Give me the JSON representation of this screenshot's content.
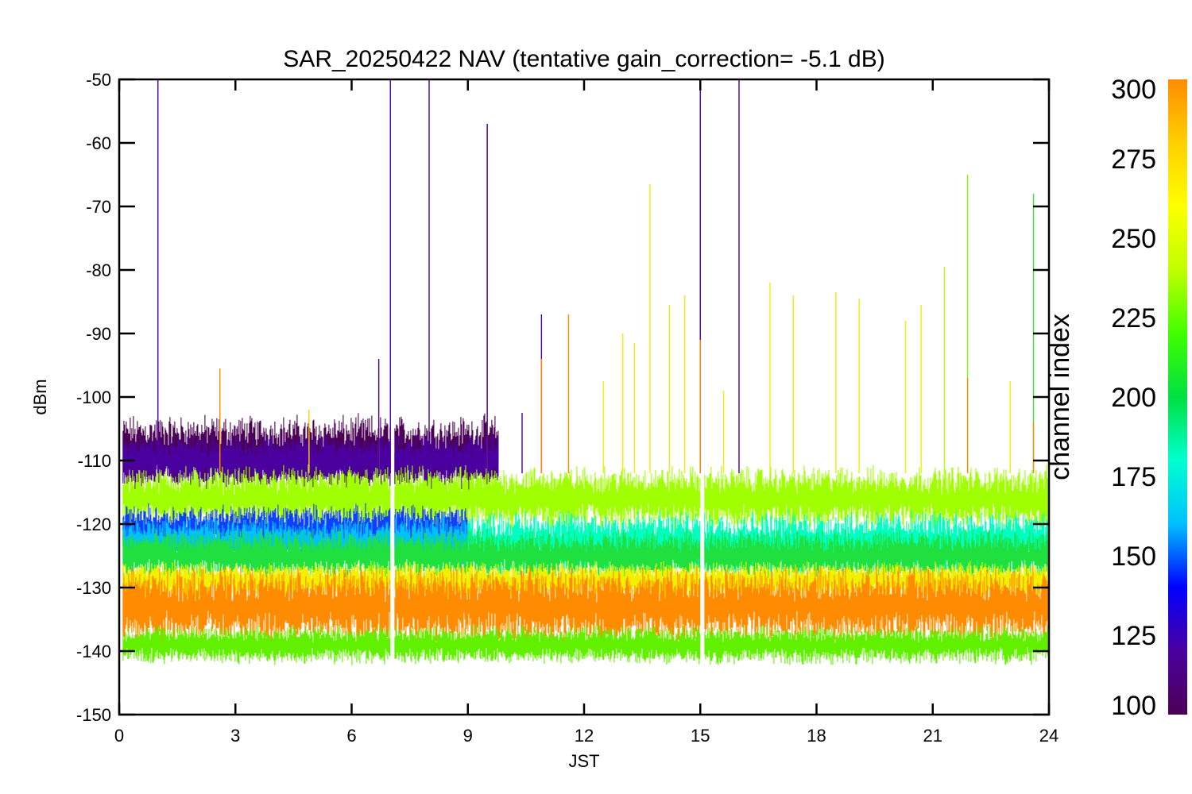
{
  "chart_data": {
    "type": "line",
    "title": "SAR_20250422 NAV (tentative gain_correction= -5.1 dB)",
    "xlabel": "JST",
    "ylabel": "dBm",
    "xlim": [
      0,
      24
    ],
    "ylim": [
      -150,
      -50
    ],
    "xticks": [
      0,
      3,
      6,
      9,
      12,
      15,
      18,
      21,
      24
    ],
    "yticks": [
      -50,
      -60,
      -70,
      -80,
      -90,
      -100,
      -110,
      -120,
      -130,
      -140,
      -150
    ],
    "grid": false,
    "colorbar": {
      "label": "channel index",
      "range": [
        100,
        300
      ],
      "ticks": [
        300,
        275,
        250,
        225,
        200,
        175,
        150,
        125,
        100
      ],
      "colors": [
        "#4b0055",
        "#4b00a0",
        "#0000ff",
        "#00c0ff",
        "#00ffd0",
        "#00e040",
        "#40ff00",
        "#c0ff00",
        "#ffff00",
        "#ffd000",
        "#ff8c00"
      ]
    },
    "bands": [
      {
        "channel_index": 100,
        "color": "#4b0055",
        "x_range": [
          0.1,
          9.8
        ],
        "y_center": -109,
        "y_spread": 3
      },
      {
        "channel_index": 110,
        "color": "#4b00a0",
        "x_range": [
          0.1,
          9.8
        ],
        "y_center": -110,
        "y_spread": 2
      },
      {
        "channel_index": 255,
        "color": "#a0ff00",
        "x_range": [
          0.1,
          24
        ],
        "y_center": -116,
        "y_spread": 2.5
      },
      {
        "channel_index": 140,
        "color": "#1040ff",
        "x_range": [
          0.1,
          9.0
        ],
        "y_center": -121,
        "y_spread": 2
      },
      {
        "channel_index": 170,
        "color": "#00c0ff",
        "x_range": [
          0.1,
          9.0
        ],
        "y_center": -123,
        "y_spread": 2
      },
      {
        "channel_index": 195,
        "color": "#00ffc0",
        "x_range": [
          9.0,
          24
        ],
        "y_center": -123,
        "y_spread": 2.5
      },
      {
        "channel_index": 225,
        "color": "#20e040",
        "x_range": [
          0.1,
          24
        ],
        "y_center": -125,
        "y_spread": 2
      },
      {
        "channel_index": 270,
        "color": "#f0f000",
        "x_range": [
          0.1,
          24
        ],
        "y_center": -129,
        "y_spread": 1.5
      },
      {
        "channel_index": 295,
        "color": "#ff8c00",
        "x_range": [
          0.1,
          24
        ],
        "y_center": -133,
        "y_spread": 3
      },
      {
        "channel_index": 250,
        "color": "#60f000",
        "x_range": [
          0.1,
          24
        ],
        "y_center": -139,
        "y_spread": 1.5
      }
    ],
    "gaps": [
      [
        7.0,
        7.1
      ],
      [
        15.0,
        15.1
      ]
    ],
    "spikes": [
      {
        "x": 1.0,
        "y": -50,
        "color": "#4b00a0"
      },
      {
        "x": 2.6,
        "y": -95.5,
        "color": "#ff8c00"
      },
      {
        "x": 4.9,
        "y": -102,
        "color": "#ffd000"
      },
      {
        "x": 6.7,
        "y": -94,
        "color": "#e0e000"
      },
      {
        "x": 6.7,
        "y": -94,
        "color": "#4b00a0"
      },
      {
        "x": 7.0,
        "y": -50,
        "color": "#4b00a0"
      },
      {
        "x": 8.0,
        "y": -50,
        "color": "#4b00a0"
      },
      {
        "x": 9.5,
        "y": -57,
        "color": "#ffa000"
      },
      {
        "x": 9.5,
        "y": -57,
        "color": "#4b00a0"
      },
      {
        "x": 10.4,
        "y": -102.5,
        "color": "#4b00a0"
      },
      {
        "x": 10.9,
        "y": -87,
        "color": "#4b00a0"
      },
      {
        "x": 10.9,
        "y": -94,
        "color": "#ff8c00"
      },
      {
        "x": 11.6,
        "y": -87,
        "color": "#ff8c00"
      },
      {
        "x": 12.5,
        "y": -97.5,
        "color": "#f0f000"
      },
      {
        "x": 13.0,
        "y": -90,
        "color": "#f0f000"
      },
      {
        "x": 13.3,
        "y": -91.5,
        "color": "#f0f000"
      },
      {
        "x": 13.7,
        "y": -66.5,
        "color": "#f0f000"
      },
      {
        "x": 14.2,
        "y": -85.5,
        "color": "#f0f000"
      },
      {
        "x": 14.6,
        "y": -84,
        "color": "#f0f000"
      },
      {
        "x": 15.0,
        "y": -50,
        "color": "#4b00a0"
      },
      {
        "x": 15.0,
        "y": -91,
        "color": "#ff8c00"
      },
      {
        "x": 15.6,
        "y": -99,
        "color": "#f0f000"
      },
      {
        "x": 16.0,
        "y": -50,
        "color": "#4b00a0"
      },
      {
        "x": 16.8,
        "y": -82,
        "color": "#f0f000"
      },
      {
        "x": 17.4,
        "y": -84,
        "color": "#f0f000"
      },
      {
        "x": 18.5,
        "y": -83.5,
        "color": "#f0f000"
      },
      {
        "x": 19.1,
        "y": -84.5,
        "color": "#f0f000"
      },
      {
        "x": 20.3,
        "y": -88,
        "color": "#f0f000"
      },
      {
        "x": 20.7,
        "y": -85.5,
        "color": "#f0f000"
      },
      {
        "x": 21.3,
        "y": -79.5,
        "color": "#c0ff00"
      },
      {
        "x": 21.9,
        "y": -65,
        "color": "#80ff00"
      },
      {
        "x": 21.9,
        "y": -97,
        "color": "#ff8c00"
      },
      {
        "x": 23.0,
        "y": -97.5,
        "color": "#f0f000"
      },
      {
        "x": 23.6,
        "y": -68,
        "color": "#40e040"
      },
      {
        "x": 23.6,
        "y": -104,
        "color": "#ff8c00"
      }
    ]
  }
}
